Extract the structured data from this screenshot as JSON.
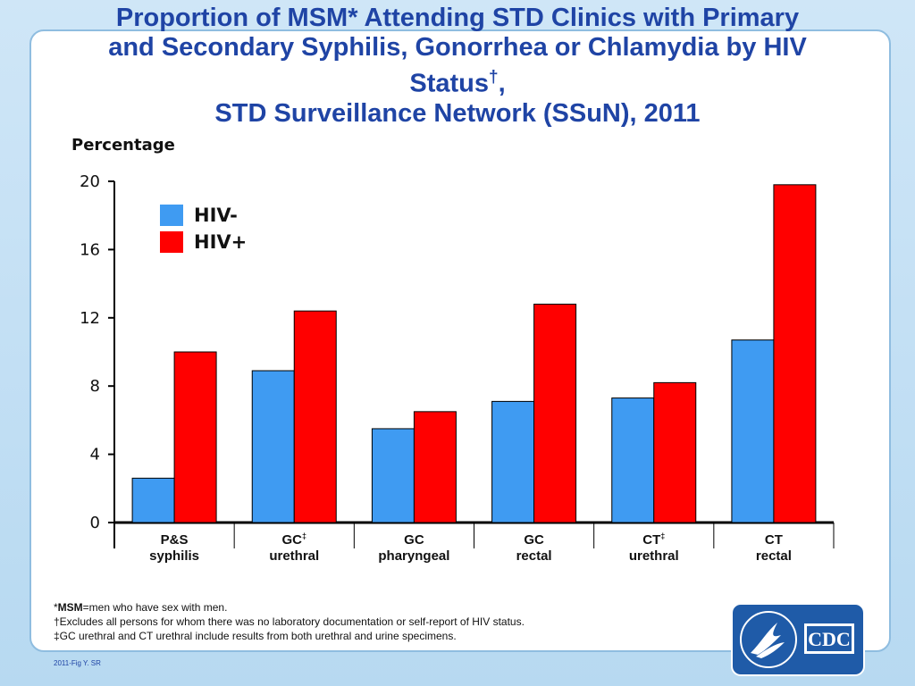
{
  "title": {
    "line1": "Proportion of MSM* Attending STD Clinics with Primary",
    "line2": "and Secondary Syphilis, Gonorrhea or Chlamydia by HIV",
    "line3": "Status",
    "line3_sup": "†",
    "line3_end": ",",
    "line4": "STD Surveillance Network (SSuN), 2011"
  },
  "chart_data": {
    "type": "bar",
    "title": "Proportion of MSM* Attending STD Clinics with Primary and Secondary Syphilis, Gonorrhea or Chlamydia by HIV Status†, STD Surveillance Network (SSuN), 2011",
    "ylabel": "Percentage",
    "xlabel": "",
    "ylim": [
      0,
      20
    ],
    "yticks": [
      "0",
      "4",
      "8",
      "12",
      "16",
      "20"
    ],
    "categories": [
      {
        "line1": "P&S",
        "sup": "",
        "line2": "syphilis"
      },
      {
        "line1": "GC",
        "sup": "‡",
        "line2": "urethral"
      },
      {
        "line1": "GC",
        "sup": "",
        "line2": "pharyngeal"
      },
      {
        "line1": "GC",
        "sup": "",
        "line2": "rectal"
      },
      {
        "line1": "CT",
        "sup": "‡",
        "line2": "urethral"
      },
      {
        "line1": "CT",
        "sup": "",
        "line2": "rectal"
      }
    ],
    "series": [
      {
        "name": "HIV-",
        "color": "#3f9bf2",
        "values": [
          2.6,
          8.9,
          5.5,
          7.1,
          7.3,
          10.7
        ]
      },
      {
        "name": "HIV+",
        "color": "#ff0000",
        "values": [
          10.0,
          12.4,
          6.5,
          12.8,
          8.2,
          19.8
        ]
      }
    ],
    "legend_position": "top-left",
    "grid": false
  },
  "footnotes": {
    "msm_star": "*",
    "msm_term": "MSM",
    "msm_def": "=men who have sex with men.",
    "dagger": "†Excludes all persons for whom there was no laboratory documentation or self-report of HIV status.",
    "ddagger": "‡GC urethral and CT urethral include results from both urethral and urine specimens."
  },
  "figure_ref": "2011-Fig Y.  SR",
  "logo": {
    "text": "CDC",
    "icon": "hhs-eagle-seal-icon"
  }
}
